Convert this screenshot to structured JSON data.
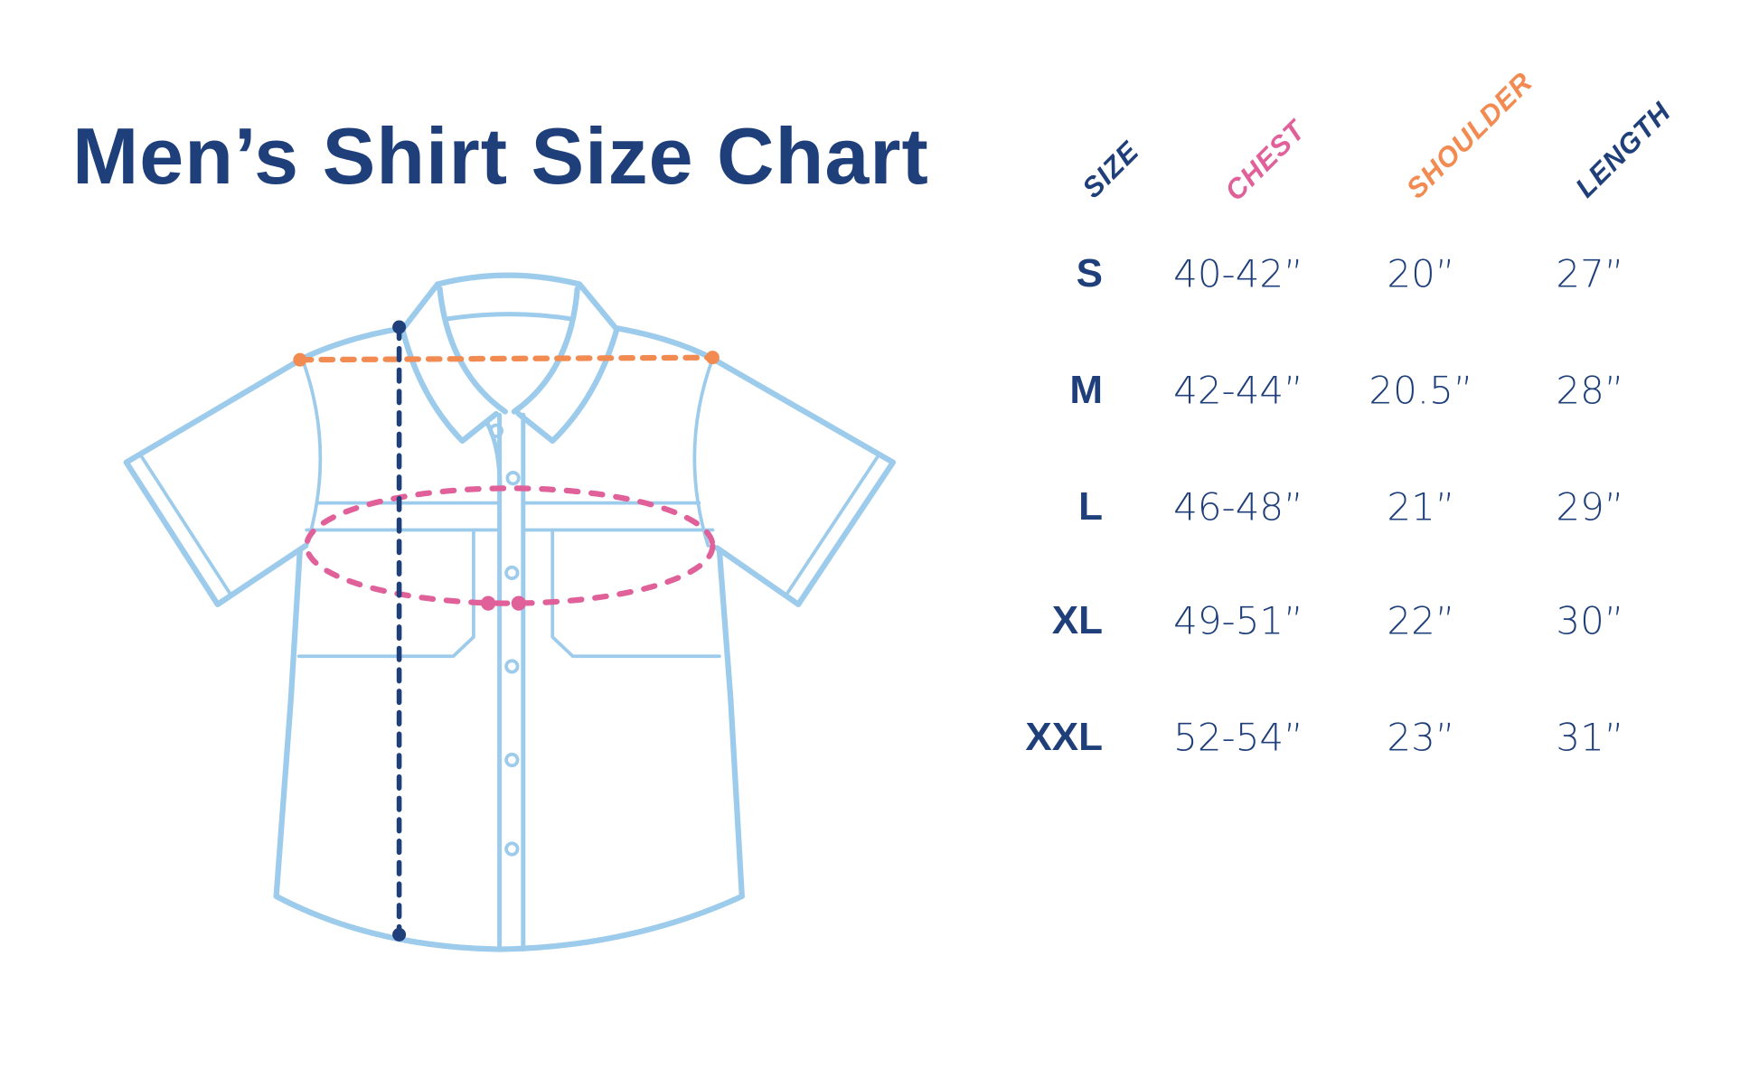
{
  "title": "Men’s Shirt Size Chart",
  "colors": {
    "title": "#1f3f7a",
    "shirt_outline": "#9dcbeb",
    "chest": "#e0609a",
    "shoulder": "#f28b52",
    "length": "#1f3f7a"
  },
  "table": {
    "headers": {
      "size": "SIZE",
      "chest": "CHEST",
      "shoulder": "SHOULDER",
      "length": "LENGTH"
    },
    "rows": [
      {
        "size": "S",
        "chest": "40-42”",
        "shoulder": "20”",
        "length": "27”"
      },
      {
        "size": "M",
        "chest": "42-44”",
        "shoulder": "20.5”",
        "length": "28”"
      },
      {
        "size": "L",
        "chest": "46-48”",
        "shoulder": "21”",
        "length": "29”"
      },
      {
        "size": "XL",
        "chest": "49-51”",
        "shoulder": "22”",
        "length": "30”"
      },
      {
        "size": "XXL",
        "chest": "52-54”",
        "shoulder": "23”",
        "length": "31”"
      }
    ]
  }
}
